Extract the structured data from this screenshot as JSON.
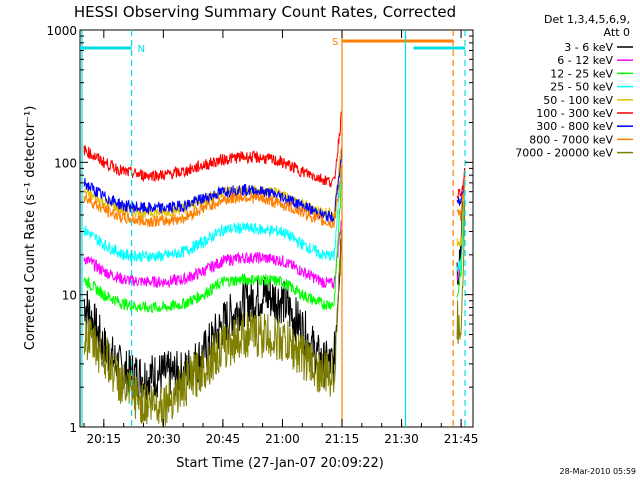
{
  "chart_data": {
    "type": "line",
    "title": "HESSI Observing Summary Count Rates, Corrected",
    "xlabel": "Start Time (27-Jan-07 20:09:22)",
    "ylabel": "Corrected Count Rate (s⁻¹ detector⁻¹)",
    "yscale": "log",
    "ylim": [
      1,
      1000
    ],
    "xlim": [
      "20:09",
      "21:48"
    ],
    "x_ticks": [
      "20:15",
      "20:30",
      "20:45",
      "21:00",
      "21:15",
      "21:30",
      "21:45"
    ],
    "y_ticks": [
      "1",
      "10",
      "100",
      "1000"
    ],
    "grid": false,
    "legend_header": [
      "Det 1,3,4,5,6,9,",
      "Att 0"
    ],
    "legend_position": "right",
    "timestamp": "28-Mar-2010 05:59",
    "flags": [
      {
        "label": "N",
        "color": "#00e0e0",
        "intervals": [
          [
            "20:09",
            "20:22"
          ],
          [
            "21:33",
            "21:46"
          ]
        ]
      },
      {
        "label": "S",
        "color": "#ff8000",
        "intervals": [
          [
            "21:15",
            "21:43"
          ]
        ]
      }
    ],
    "vlines": [
      {
        "x": "20:09.5",
        "color": "#00e0e0",
        "style": "solid"
      },
      {
        "x": "20:22",
        "color": "#00e0e0",
        "style": "dashed"
      },
      {
        "x": "21:15",
        "color": "#ff8000",
        "style": "solid"
      },
      {
        "x": "21:31",
        "color": "#00e0e0",
        "style": "solid"
      },
      {
        "x": "21:43",
        "color": "#ff8000",
        "style": "dashed"
      },
      {
        "x": "21:46",
        "color": "#00e0e0",
        "style": "dashed"
      }
    ],
    "x": [
      "20:10",
      "20:15",
      "20:20",
      "20:25",
      "20:30",
      "20:35",
      "20:40",
      "20:45",
      "20:50",
      "20:55",
      "21:00",
      "21:05",
      "21:10",
      "21:13",
      "21:15",
      "21:44",
      "21:45",
      "21:46"
    ],
    "series": [
      {
        "name": "3 - 6 keV",
        "color": "#000000",
        "values": [
          9,
          4,
          2.6,
          2.4,
          2.5,
          2.5,
          3.5,
          6,
          8.5,
          10,
          9,
          5.5,
          3,
          3,
          40,
          15,
          25,
          70
        ]
      },
      {
        "name": "6 - 12 keV",
        "color": "#ff00ff",
        "values": [
          19,
          15,
          13,
          12.5,
          12.5,
          13,
          15,
          18,
          19,
          19,
          18,
          15,
          12.5,
          12,
          40,
          13,
          18,
          70
        ]
      },
      {
        "name": "12 - 25 keV",
        "color": "#00ff00",
        "values": [
          13,
          10,
          8.5,
          8,
          8,
          8.5,
          10,
          12.5,
          13,
          13,
          12.5,
          10,
          8.5,
          8.5,
          80,
          10,
          15,
          70
        ]
      },
      {
        "name": "25 - 50 keV",
        "color": "#00ffff",
        "values": [
          31,
          24,
          20,
          19.5,
          19.5,
          21,
          25,
          31,
          32,
          31,
          30,
          24,
          20,
          19.5,
          100,
          17,
          16,
          75
        ]
      },
      {
        "name": "50 - 100 keV",
        "color": "#e0c000",
        "values": [
          60,
          50,
          44,
          42,
          42,
          45,
          52,
          60,
          62,
          60,
          57,
          48,
          42,
          40,
          150,
          25,
          25,
          80
        ]
      },
      {
        "name": "100 - 300 keV",
        "color": "#ff0000",
        "values": [
          125,
          100,
          85,
          80,
          80,
          85,
          95,
          105,
          110,
          108,
          100,
          85,
          75,
          70,
          250,
          60,
          55,
          85
        ]
      },
      {
        "name": "300 - 800 keV",
        "color": "#0000ff",
        "values": [
          70,
          55,
          47,
          45,
          45,
          47,
          53,
          60,
          62,
          60,
          55,
          47,
          40,
          38,
          120,
          50,
          50,
          80
        ]
      },
      {
        "name": "800 - 7000 keV",
        "color": "#ff8000",
        "values": [
          55,
          44,
          38,
          36,
          36,
          38,
          45,
          52,
          55,
          53,
          48,
          42,
          36,
          34,
          100,
          40,
          40,
          78
        ]
      },
      {
        "name": "7000 - 20000 keV",
        "color": "#808000",
        "values": [
          5,
          3.5,
          2,
          1.5,
          1.5,
          2,
          2.8,
          4,
          5,
          5,
          4.5,
          3.5,
          2.5,
          2.5,
          30,
          6,
          6,
          60
        ]
      }
    ]
  }
}
